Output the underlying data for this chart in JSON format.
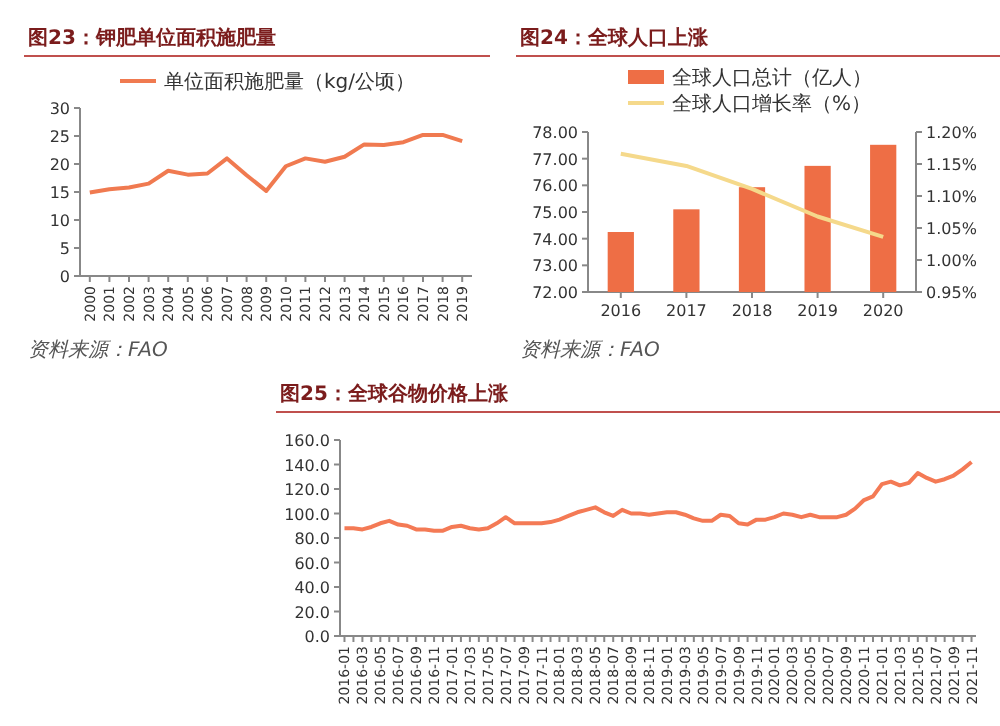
{
  "chart_data": [
    {
      "type": "line",
      "title": "图23：钾肥单位面积施肥量",
      "categories": [
        "2000",
        "2001",
        "2002",
        "2003",
        "2004",
        "2005",
        "2006",
        "2007",
        "2008",
        "2009",
        "2010",
        "2011",
        "2012",
        "2013",
        "2014",
        "2015",
        "2016",
        "2017",
        "2018",
        "2019"
      ],
      "series": [
        {
          "name": "单位面积施肥量（kg/公顷）",
          "color": "#f07a50",
          "values": [
            14.9,
            15.5,
            15.8,
            16.5,
            18.8,
            18.1,
            18.3,
            21.0,
            18.0,
            15.2,
            19.6,
            21.0,
            20.4,
            21.3,
            23.5,
            23.4,
            23.9,
            25.2,
            25.2,
            24.1
          ]
        }
      ],
      "ylim": [
        0,
        30
      ],
      "yticks": [
        0,
        5,
        10,
        15,
        20,
        25,
        30
      ],
      "legend": "top",
      "annotations": [
        "资料来源：FAO"
      ]
    },
    {
      "type": "bar",
      "title": "图24：全球人口上涨",
      "categories": [
        "2016",
        "2017",
        "2018",
        "2019",
        "2020"
      ],
      "series": [
        {
          "name": "全球人口总计（亿人）",
          "color": "#ee6e45",
          "values": [
            74.25,
            75.1,
            75.93,
            76.73,
            77.52
          ]
        },
        {
          "name": "全球人口增长率（%）",
          "type": "line",
          "axis": "y2",
          "color": "#f5d98b",
          "values": [
            1.166,
            1.147,
            1.111,
            1.068,
            1.036
          ]
        }
      ],
      "ylim": [
        72,
        78
      ],
      "yticks": [
        {
          "value": 72,
          "label": "72.00"
        },
        {
          "value": 73,
          "label": "73.00"
        },
        {
          "value": 74,
          "label": "74.00"
        },
        {
          "value": 75,
          "label": "75.00"
        },
        {
          "value": 76,
          "label": "76.00"
        },
        {
          "value": 77,
          "label": "77.00"
        },
        {
          "value": 78,
          "label": "78.00"
        }
      ],
      "y2lim": [
        0.95,
        1.2
      ],
      "y2ticks": [
        {
          "value": 0.95,
          "label": "0.95%"
        },
        {
          "value": 1.0,
          "label": "1.00%"
        },
        {
          "value": 1.05,
          "label": "1.05%"
        },
        {
          "value": 1.1,
          "label": "1.10%"
        },
        {
          "value": 1.15,
          "label": "1.15%"
        },
        {
          "value": 1.2,
          "label": "1.20%"
        }
      ],
      "legend": "top",
      "annotations": [
        "资料来源：FAO"
      ]
    },
    {
      "type": "line",
      "title": "图25：全球谷物价格上涨",
      "categories": [
        "2016-01",
        null,
        "2016-03",
        null,
        "2016-05",
        null,
        "2016-07",
        null,
        "2016-09",
        null,
        "2016-11",
        null,
        "2017-01",
        null,
        "2017-03",
        null,
        "2017-05",
        null,
        "2017-07",
        null,
        "2017-09",
        null,
        "2017-11",
        null,
        "2018-01",
        null,
        "2018-03",
        null,
        "2018-05",
        null,
        "2018-07",
        null,
        "2018-09",
        null,
        "2018-11",
        null,
        "2019-01",
        null,
        "2019-03",
        null,
        "2019-05",
        null,
        "2019-07",
        null,
        "2019-09",
        null,
        "2019-11",
        null,
        "2020-01",
        null,
        "2020-03",
        null,
        "2020-05",
        null,
        "2020-07",
        null,
        "2020-09",
        null,
        "2020-11",
        null,
        "2021-01",
        null,
        "2021-03",
        null,
        "2021-05",
        null,
        "2021-07",
        null,
        "2021-09",
        null,
        "2021-11"
      ],
      "series": [
        {
          "color": "#f47a55",
          "values": [
            88,
            88,
            87,
            89,
            92,
            94,
            91,
            90,
            87,
            87,
            86,
            86,
            89,
            90,
            88,
            87,
            88,
            92,
            97,
            92,
            92,
            92,
            92,
            93,
            95,
            98,
            101,
            103,
            105,
            101,
            98,
            103,
            100,
            100,
            99,
            100,
            101,
            101,
            99,
            96,
            94,
            94,
            99,
            98,
            92,
            91,
            95,
            95,
            97,
            100,
            99,
            97,
            99,
            97,
            97,
            97,
            99,
            104,
            111,
            114,
            124,
            126,
            123,
            125,
            133,
            129,
            126,
            128,
            131,
            136,
            142
          ]
        }
      ],
      "ylim": [
        0,
        160
      ],
      "yticks": [
        {
          "value": 0,
          "label": "0.0"
        },
        {
          "value": 20,
          "label": "20.0"
        },
        {
          "value": 40,
          "label": "40.0"
        },
        {
          "value": 60,
          "label": "60.0"
        },
        {
          "value": 80,
          "label": "80.0"
        },
        {
          "value": 100,
          "label": "100.0"
        },
        {
          "value": 120,
          "label": "120.0"
        },
        {
          "value": 140,
          "label": "140.0"
        },
        {
          "value": 160,
          "label": "160.0"
        }
      ]
    }
  ]
}
